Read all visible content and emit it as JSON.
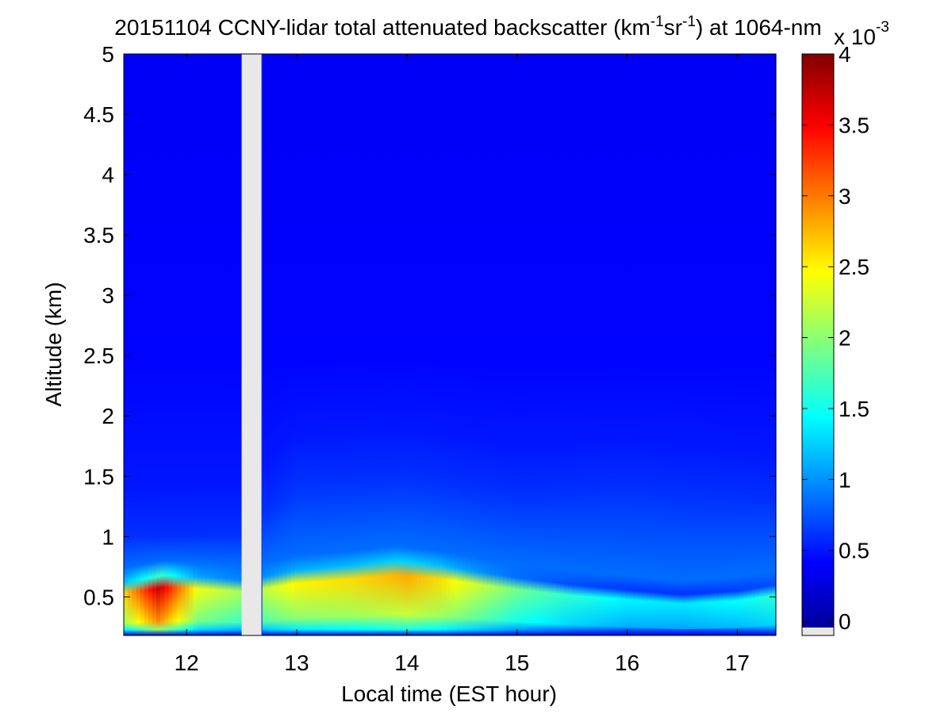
{
  "chart_data": {
    "type": "heatmap",
    "title": {
      "date": "20151104",
      "text_before_unit": " CCNY-lidar total attenuated backscatter (km",
      "exp1": "-1",
      "mid": "sr",
      "exp2": "-1",
      "text_after_unit": ") at 1064-nm"
    },
    "xlabel": "Local time (EST hour)",
    "ylabel": "Altitude (km)",
    "xlim": [
      11.43,
      17.35
    ],
    "ylim": [
      0.18,
      5
    ],
    "x_ticks": [
      12,
      13,
      14,
      15,
      16,
      17
    ],
    "x_tick_labels": [
      "12",
      "13",
      "14",
      "15",
      "16",
      "17"
    ],
    "y_ticks": [
      0.5,
      1,
      1.5,
      2,
      2.5,
      3,
      3.5,
      4,
      4.5,
      5
    ],
    "y_tick_labels": [
      "0.5",
      "1",
      "1.5",
      "2",
      "2.5",
      "3",
      "3.5",
      "4",
      "4.5",
      "5"
    ],
    "data_gap": {
      "x_start": 12.5,
      "x_end": 12.68,
      "color": "#e8e8e8"
    },
    "colorbar": {
      "colormap": "jet",
      "range": [
        -0.1,
        4
      ],
      "ticks": [
        0,
        0.5,
        1,
        1.5,
        2,
        2.5,
        3,
        3.5,
        4
      ],
      "tick_labels": [
        "0",
        "0.5",
        "1",
        "1.5",
        "2",
        "2.5",
        "3",
        "3.5",
        "4"
      ],
      "multiplier_base": "x 10",
      "multiplier_exponent": "-3",
      "nodata_color": "#e8e8e8"
    },
    "aerosol_layer_top_km": [
      {
        "x": 11.43,
        "y": 0.62
      },
      {
        "x": 11.8,
        "y": 0.68
      },
      {
        "x": 12.2,
        "y": 0.66
      },
      {
        "x": 12.5,
        "y": 0.64
      },
      {
        "x": 12.68,
        "y": 0.66
      },
      {
        "x": 13.0,
        "y": 0.72
      },
      {
        "x": 13.5,
        "y": 0.76
      },
      {
        "x": 13.9,
        "y": 0.8
      },
      {
        "x": 14.3,
        "y": 0.76
      },
      {
        "x": 14.7,
        "y": 0.7
      },
      {
        "x": 15.0,
        "y": 0.66
      },
      {
        "x": 15.5,
        "y": 0.6
      },
      {
        "x": 16.0,
        "y": 0.56
      },
      {
        "x": 16.5,
        "y": 0.52
      },
      {
        "x": 17.0,
        "y": 0.55
      },
      {
        "x": 17.35,
        "y": 0.6
      }
    ],
    "aerosol_layer_peak_value": [
      {
        "x": 11.43,
        "v": 2.6
      },
      {
        "x": 11.75,
        "v": 3.7
      },
      {
        "x": 12.1,
        "v": 2.4
      },
      {
        "x": 12.5,
        "v": 2.1
      },
      {
        "x": 12.68,
        "v": 2.2
      },
      {
        "x": 13.0,
        "v": 2.5
      },
      {
        "x": 13.5,
        "v": 2.6
      },
      {
        "x": 14.0,
        "v": 2.8
      },
      {
        "x": 14.3,
        "v": 2.6
      },
      {
        "x": 14.7,
        "v": 2.2
      },
      {
        "x": 15.0,
        "v": 1.9
      },
      {
        "x": 15.5,
        "v": 1.6
      },
      {
        "x": 16.0,
        "v": 1.4
      },
      {
        "x": 16.5,
        "v": 1.35
      },
      {
        "x": 17.0,
        "v": 1.45
      },
      {
        "x": 17.35,
        "v": 1.6
      }
    ],
    "residual_layer_top_km": [
      {
        "x": 11.43,
        "y": 1.0
      },
      {
        "x": 12.5,
        "y": 1.02
      },
      {
        "x": 13.0,
        "y": 1.45
      },
      {
        "x": 14.0,
        "y": 1.5
      },
      {
        "x": 15.0,
        "y": 1.35
      },
      {
        "x": 16.0,
        "y": 1.4
      },
      {
        "x": 17.35,
        "y": 1.3
      }
    ],
    "background_value": 0.38,
    "near_ground_value": 0.3
  }
}
